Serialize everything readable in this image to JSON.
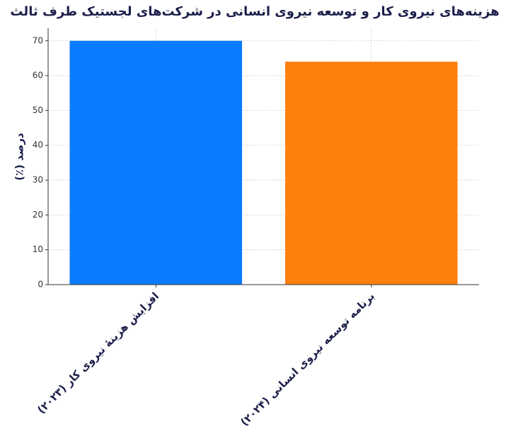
{
  "chart_data": {
    "type": "bar",
    "title": "هزینه‌های نیروی کار و توسعه نیروی انسانی در شرکت‌های لجستیک طرف ثالث",
    "y_label": "درصد (٪)",
    "categories": [
      "افزایش هزینهٔ نیروی کار (۲۰۲۳)",
      "برنامه توسعه نیروی انسانی (۲۰۲۴)"
    ],
    "values": [
      70,
      64
    ],
    "colors": [
      "#0a7cff",
      "#ff7f0e"
    ],
    "ylim": [
      0,
      73.6
    ],
    "yticks": [
      0,
      10,
      20,
      30,
      40,
      50,
      60,
      70
    ],
    "grid": true
  }
}
